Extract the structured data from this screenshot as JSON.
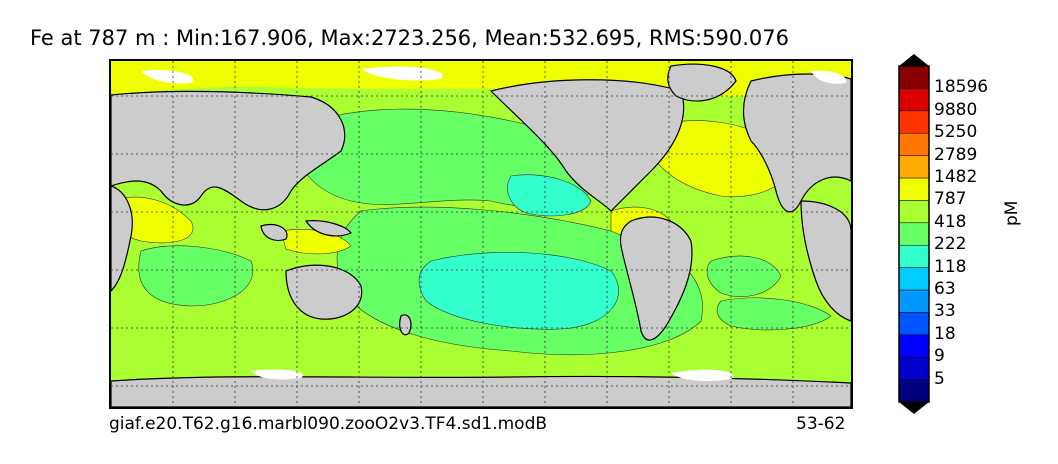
{
  "title": "Fe at 787 m : Min:167.906, Max:2723.256, Mean:532.695, RMS:590.076",
  "footer": {
    "case_name": "giaf.e20.T62.g16.marbl090.zooO2v3.TF4.sd1.modB",
    "years": "53-62"
  },
  "colorbar": {
    "unit": "pM",
    "levels": [
      "18596",
      "9880",
      "5250",
      "2789",
      "1482",
      "787",
      "418",
      "222",
      "118",
      "63",
      "33",
      "18",
      "9",
      "5"
    ],
    "colors": [
      "#000080",
      "#0000cd",
      "#0000ff",
      "#0055ff",
      "#0099ff",
      "#00ccff",
      "#33ffcc",
      "#66ff66",
      "#aaff33",
      "#eeff00",
      "#ffaa00",
      "#ff7700",
      "#ff3300",
      "#dd0000",
      "#880000"
    ],
    "extend": "both"
  },
  "map": {
    "land_color": "#cccccc",
    "grid": true,
    "projection": "equirectangular, Pacific-centered"
  }
}
